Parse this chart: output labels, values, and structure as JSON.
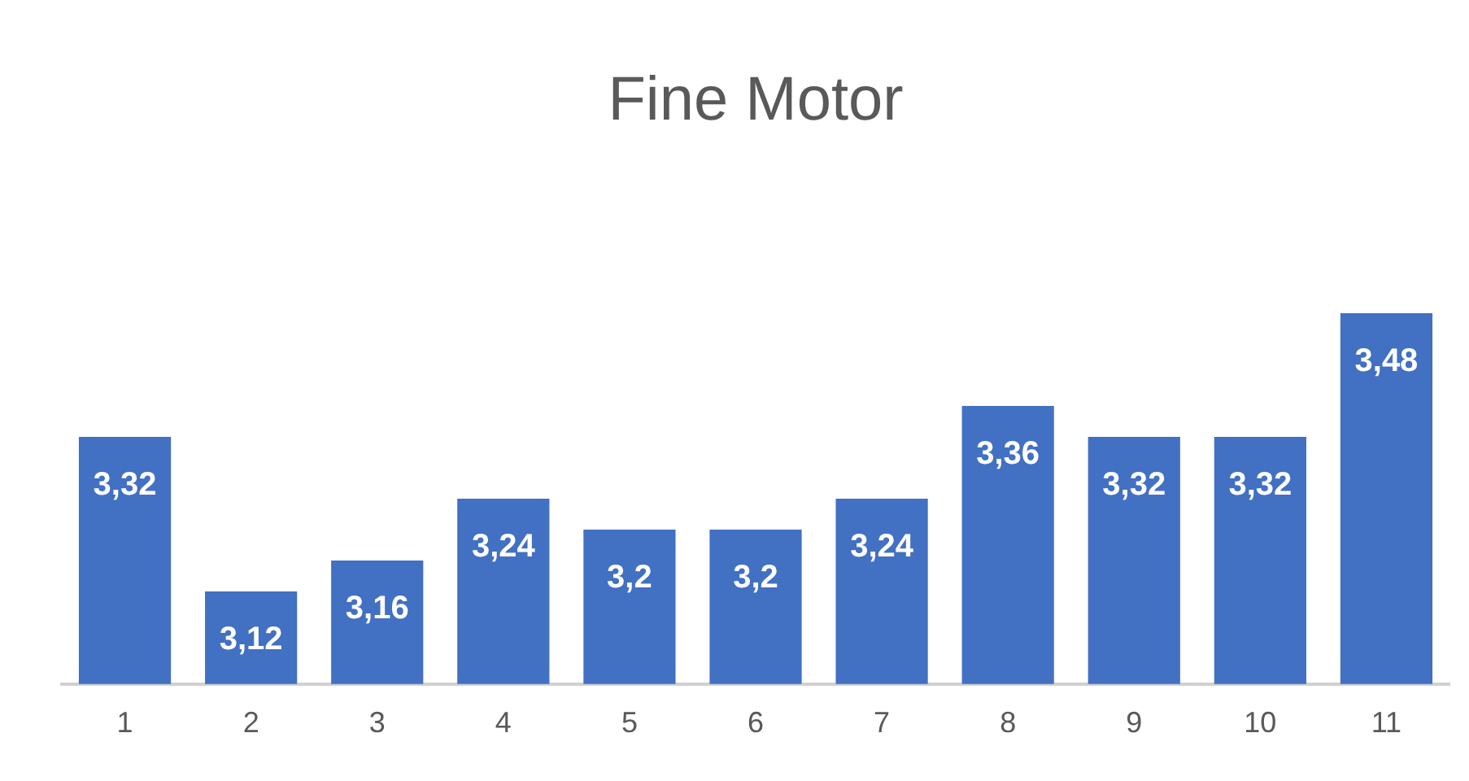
{
  "chart_data": {
    "type": "bar",
    "title": "Fine Motor",
    "categories": [
      "1",
      "2",
      "3",
      "4",
      "5",
      "6",
      "7",
      "8",
      "9",
      "10",
      "11"
    ],
    "values": [
      3.32,
      3.12,
      3.16,
      3.24,
      3.2,
      3.2,
      3.24,
      3.36,
      3.32,
      3.32,
      3.48
    ],
    "value_labels": [
      "3,32",
      "3,12",
      "3,16",
      "3,24",
      "3,2",
      "3,2",
      "3,24",
      "3,36",
      "3,32",
      "3,32",
      "3,48"
    ],
    "color": "#4270c2",
    "grid": false,
    "legend": false
  }
}
